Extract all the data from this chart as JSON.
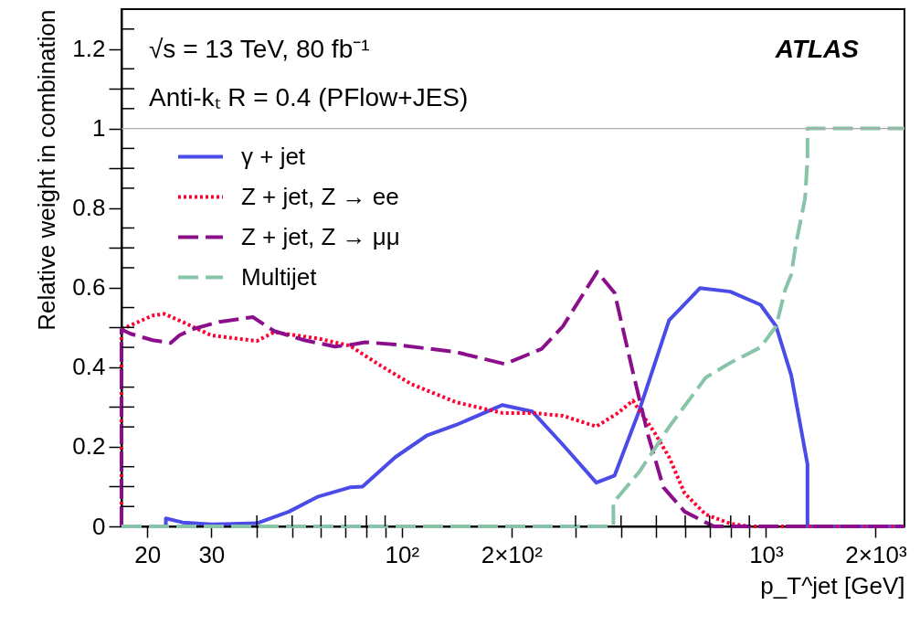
{
  "chart_data": {
    "type": "line",
    "xlabel": "p_T^jet [GeV]",
    "ylabel": "Relative weight in combination",
    "xlim": [
      17,
      2400
    ],
    "ylim": [
      0,
      1.3
    ],
    "log": "x",
    "grid": false,
    "legend": "top left",
    "marker": "none",
    "xticks": [
      20,
      30,
      {
        "value": 40,
        "label": null
      },
      {
        "value": 50,
        "label": null
      },
      {
        "value": 60,
        "label": null
      },
      {
        "value": 70,
        "label": null
      },
      {
        "value": 80,
        "label": null
      },
      {
        "value": 90,
        "label": null
      },
      {
        "value": 100,
        "label": "10²"
      },
      {
        "value": 200,
        "label": "2×10²"
      },
      {
        "value": 300,
        "label": null
      },
      {
        "value": 400,
        "label": null
      },
      {
        "value": 500,
        "label": null
      },
      {
        "value": 600,
        "label": null
      },
      {
        "value": 700,
        "label": null
      },
      {
        "value": 800,
        "label": null
      },
      {
        "value": 900,
        "label": null
      },
      {
        "value": 1000,
        "label": "10³"
      },
      {
        "value": 2000,
        "label": "2×10³"
      }
    ],
    "yticks": [
      0,
      {
        "value": 0.05,
        "label": null
      },
      {
        "value": 0.1,
        "label": null
      },
      {
        "value": 0.15,
        "label": null
      },
      0.2,
      {
        "value": 0.25,
        "label": null
      },
      {
        "value": 0.3,
        "label": null
      },
      {
        "value": 0.35,
        "label": null
      },
      0.4,
      {
        "value": 0.45,
        "label": null
      },
      {
        "value": 0.5,
        "label": null
      },
      {
        "value": 0.55,
        "label": null
      },
      0.6,
      {
        "value": 0.65,
        "label": null
      },
      {
        "value": 0.7,
        "label": null
      },
      {
        "value": 0.75,
        "label": null
      },
      0.8,
      {
        "value": 0.85,
        "label": null
      },
      {
        "value": 0.9,
        "label": null
      },
      {
        "value": 0.95,
        "label": null
      },
      1,
      {
        "value": 1.05,
        "label": null
      },
      {
        "value": 1.1,
        "label": null
      },
      {
        "value": 1.15,
        "label": null
      },
      1.2,
      {
        "value": 1.25,
        "label": null
      }
    ],
    "ref_lines": [
      {
        "axis": "y",
        "value": 1,
        "label": null,
        "color": "#aaaaaa"
      }
    ],
    "annotations": [
      "√s = 13 TeV, 80 fb⁻¹",
      "Anti-kₜ R = 0.4 (PFlow+JES)",
      "ATLAS"
    ],
    "series": [
      {
        "name": "γ + jet",
        "color": "#4b4be8",
        "line_style": "solid",
        "x": [
          21,
          22.5,
          22.5,
          25,
          30,
          40,
          49,
          59,
          72,
          78,
          96,
          117,
          141,
          189,
          228,
          277,
          342,
          384,
          448,
          542,
          659,
          798,
          966,
          1066,
          1173,
          1300,
          1300,
          2400
        ],
        "values": [
          0,
          0,
          0.02,
          0.01,
          0.005,
          0.008,
          0.037,
          0.075,
          0.098,
          0.1,
          0.174,
          0.228,
          0.255,
          0.305,
          0.289,
          0.205,
          0.11,
          0.128,
          0.289,
          0.518,
          0.599,
          0.59,
          0.557,
          0.503,
          0.38,
          0.156,
          0,
          0
        ]
      },
      {
        "name": "Z + jet, Z → ee",
        "color": "#ff0033",
        "line_style": "dotted",
        "x": [
          17,
          17,
          20.7,
          22.3,
          25,
          30,
          40,
          44.6,
          59,
          72,
          87.5,
          106,
          141,
          189,
          228,
          277,
          342,
          392,
          431,
          494,
          542,
          598,
          683,
          798,
          900,
          2400
        ],
        "values": [
          0,
          0.495,
          0.53,
          0.534,
          0.514,
          0.48,
          0.466,
          0.488,
          0.472,
          0.454,
          0.404,
          0.358,
          0.312,
          0.285,
          0.285,
          0.278,
          0.251,
          0.285,
          0.316,
          0.236,
          0.174,
          0.083,
          0.03,
          0.007,
          0,
          0
        ]
      },
      {
        "name": "Z + jet, Z → μμ",
        "color": "#8b0f8b",
        "line_style": "dashed",
        "x": [
          17,
          17,
          18,
          20.7,
          23.2,
          24.5,
          26.5,
          31.5,
          39,
          44.6,
          54,
          65.5,
          72,
          79.4,
          96,
          141,
          192,
          242,
          277,
          344,
          384,
          431,
          475,
          523,
          598,
          683,
          720,
          2400
        ],
        "values": [
          0,
          0.495,
          0.484,
          0.468,
          0.461,
          0.48,
          0.495,
          0.514,
          0.526,
          0.491,
          0.468,
          0.452,
          0.456,
          0.463,
          0.457,
          0.438,
          0.408,
          0.446,
          0.503,
          0.64,
          0.587,
          0.388,
          0.228,
          0.098,
          0.037,
          0.01,
          0,
          0
        ]
      },
      {
        "name": "Multijet",
        "color": "#88c4a8",
        "line_style": "dashed",
        "x": [
          17,
          381,
          381,
          448,
          542,
          683,
          798,
          966,
          1066,
          1129,
          1173,
          1208,
          1280,
          1300,
          1300,
          2400
        ],
        "values": [
          0,
          0,
          0.06,
          0.136,
          0.25,
          0.374,
          0.411,
          0.45,
          0.503,
          0.595,
          0.633,
          0.709,
          0.824,
          0.924,
          1.0,
          1.0
        ]
      }
    ]
  }
}
